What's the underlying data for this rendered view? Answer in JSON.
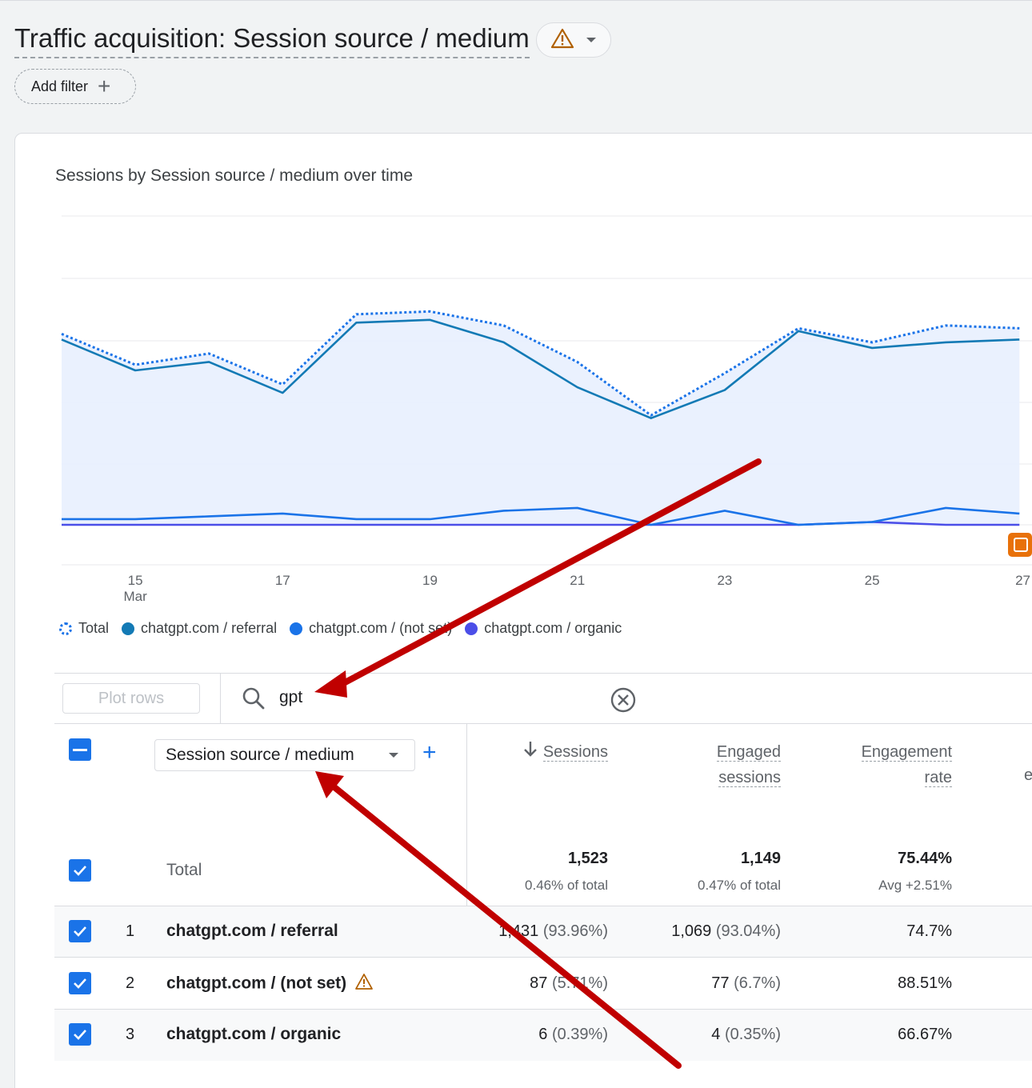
{
  "header": {
    "title": "Traffic acquisition: Session source / medium",
    "warning_icon": "warning-icon",
    "add_filter_label": "Add filter"
  },
  "chart_card": {
    "title": "Sessions by Session source / medium over time"
  },
  "chart_data": {
    "type": "line",
    "x": [
      "14",
      "15",
      "16",
      "17",
      "18",
      "19",
      "20",
      "21",
      "22",
      "23",
      "24",
      "25",
      "26",
      "27"
    ],
    "x_tick_labels": [
      "15",
      "17",
      "19",
      "21",
      "23",
      "25",
      "27"
    ],
    "x_month_label": "Mar",
    "ylim": [
      0,
      110
    ],
    "grid": true,
    "legend_position": "bottom-left",
    "series": [
      {
        "name": "Total",
        "style": "dotted-area",
        "color": "#1a73e8",
        "values": [
          68,
          57,
          61,
          50,
          75,
          76,
          71,
          58,
          39,
          54,
          70,
          65,
          71,
          70
        ]
      },
      {
        "name": "chatgpt.com / referral",
        "color": "#137ab5",
        "values": [
          66,
          55,
          58,
          47,
          72,
          73,
          65,
          49,
          38,
          48,
          69,
          63,
          65,
          66
        ]
      },
      {
        "name": "chatgpt.com / (not set)",
        "color": "#1a73e8",
        "values": [
          2,
          2,
          3,
          4,
          2,
          2,
          5,
          6,
          0,
          5,
          0,
          1,
          6,
          4
        ]
      },
      {
        "name": "chatgpt.com / organic",
        "color": "#4b4ee8",
        "values": [
          0,
          0,
          0,
          0,
          0,
          0,
          0,
          0,
          0,
          0,
          0,
          1,
          0,
          0
        ]
      }
    ]
  },
  "legend": [
    {
      "label": "Total",
      "color": "#1a73e8"
    },
    {
      "label": "chatgpt.com / referral",
      "color": "#137ab5"
    },
    {
      "label": "chatgpt.com / (not set)",
      "color": "#1a73e8"
    },
    {
      "label": "chatgpt.com / organic",
      "color": "#4b4ee8"
    }
  ],
  "toolbar": {
    "plot_rows_label": "Plot rows",
    "search_value": "gpt"
  },
  "table": {
    "dimension_label": "Session source / medium",
    "columns": {
      "sessions": "Sessions",
      "engaged_line1": "Engaged",
      "engaged_line2": "sessions",
      "rate_line1": "Engagement",
      "rate_line2": "rate",
      "cut_off": "e"
    },
    "total": {
      "label": "Total",
      "sessions": "1,523",
      "sessions_sub": "0.46% of total",
      "engaged": "1,149",
      "engaged_sub": "0.47% of total",
      "rate": "75.44%",
      "rate_sub": "Avg +2.51%"
    },
    "rows": [
      {
        "num": "1",
        "name": "chatgpt.com / referral",
        "sessions": "1,431",
        "sessions_pct": "(93.96%)",
        "engaged": "1,069",
        "engaged_pct": "(93.04%)",
        "rate": "74.7%"
      },
      {
        "num": "2",
        "name": "chatgpt.com / (not set)",
        "sessions": "87",
        "sessions_pct": "(5.71%)",
        "engaged": "77",
        "engaged_pct": "(6.7%)",
        "rate": "88.51%"
      },
      {
        "num": "3",
        "name": "chatgpt.com / organic",
        "sessions": "6",
        "sessions_pct": "(0.39%)",
        "engaged": "4",
        "engaged_pct": "(0.35%)",
        "rate": "66.67%"
      }
    ]
  },
  "colors": {
    "accent": "#1a73e8",
    "annotation_arrow": "#c00000",
    "warning": "#b06000",
    "insight_badge": "#e8710a"
  }
}
